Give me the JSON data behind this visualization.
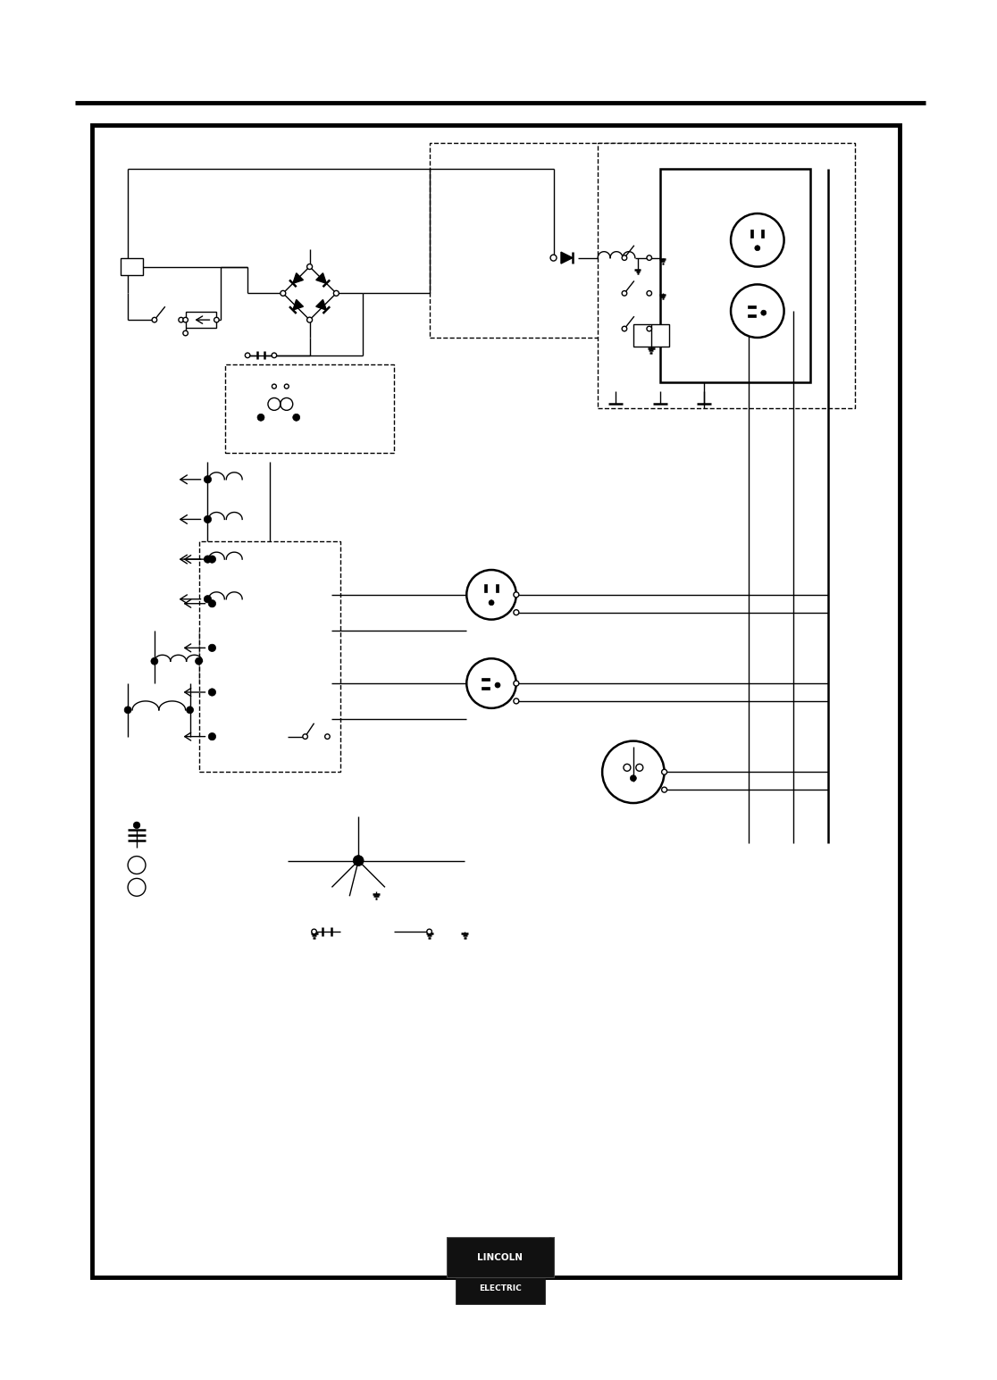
{
  "bg_color": "#ffffff",
  "line_color": "#000000",
  "fig_width": 11.16,
  "fig_height": 15.45,
  "logo_text_top": "LINCOLN",
  "logo_text_bot": "ELECTRIC"
}
